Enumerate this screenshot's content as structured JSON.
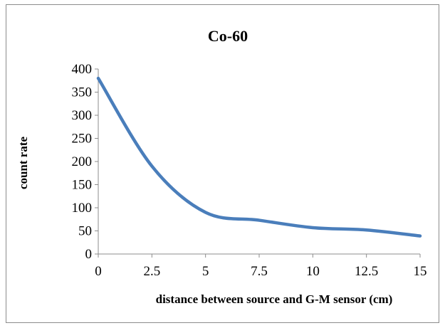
{
  "chart_data": {
    "type": "line",
    "title": "Co-60",
    "xlabel": "distance between source and G-M  sensor (cm)",
    "ylabel": "count rate",
    "xlim": [
      0,
      15
    ],
    "ylim": [
      0,
      400
    ],
    "xticks": [
      "0",
      "2.5",
      "5",
      "7.5",
      "10",
      "12.5",
      "15"
    ],
    "yticks": [
      "0",
      "50",
      "100",
      "150",
      "200",
      "250",
      "300",
      "350",
      "400"
    ],
    "grid": false,
    "legend": "none",
    "series": [
      {
        "color": "#4a7ebb",
        "x": [
          0,
          2.5,
          5,
          7.5,
          10,
          12.5,
          15
        ],
        "y": [
          380,
          190,
          90,
          73,
          57,
          52,
          39
        ]
      }
    ]
  }
}
